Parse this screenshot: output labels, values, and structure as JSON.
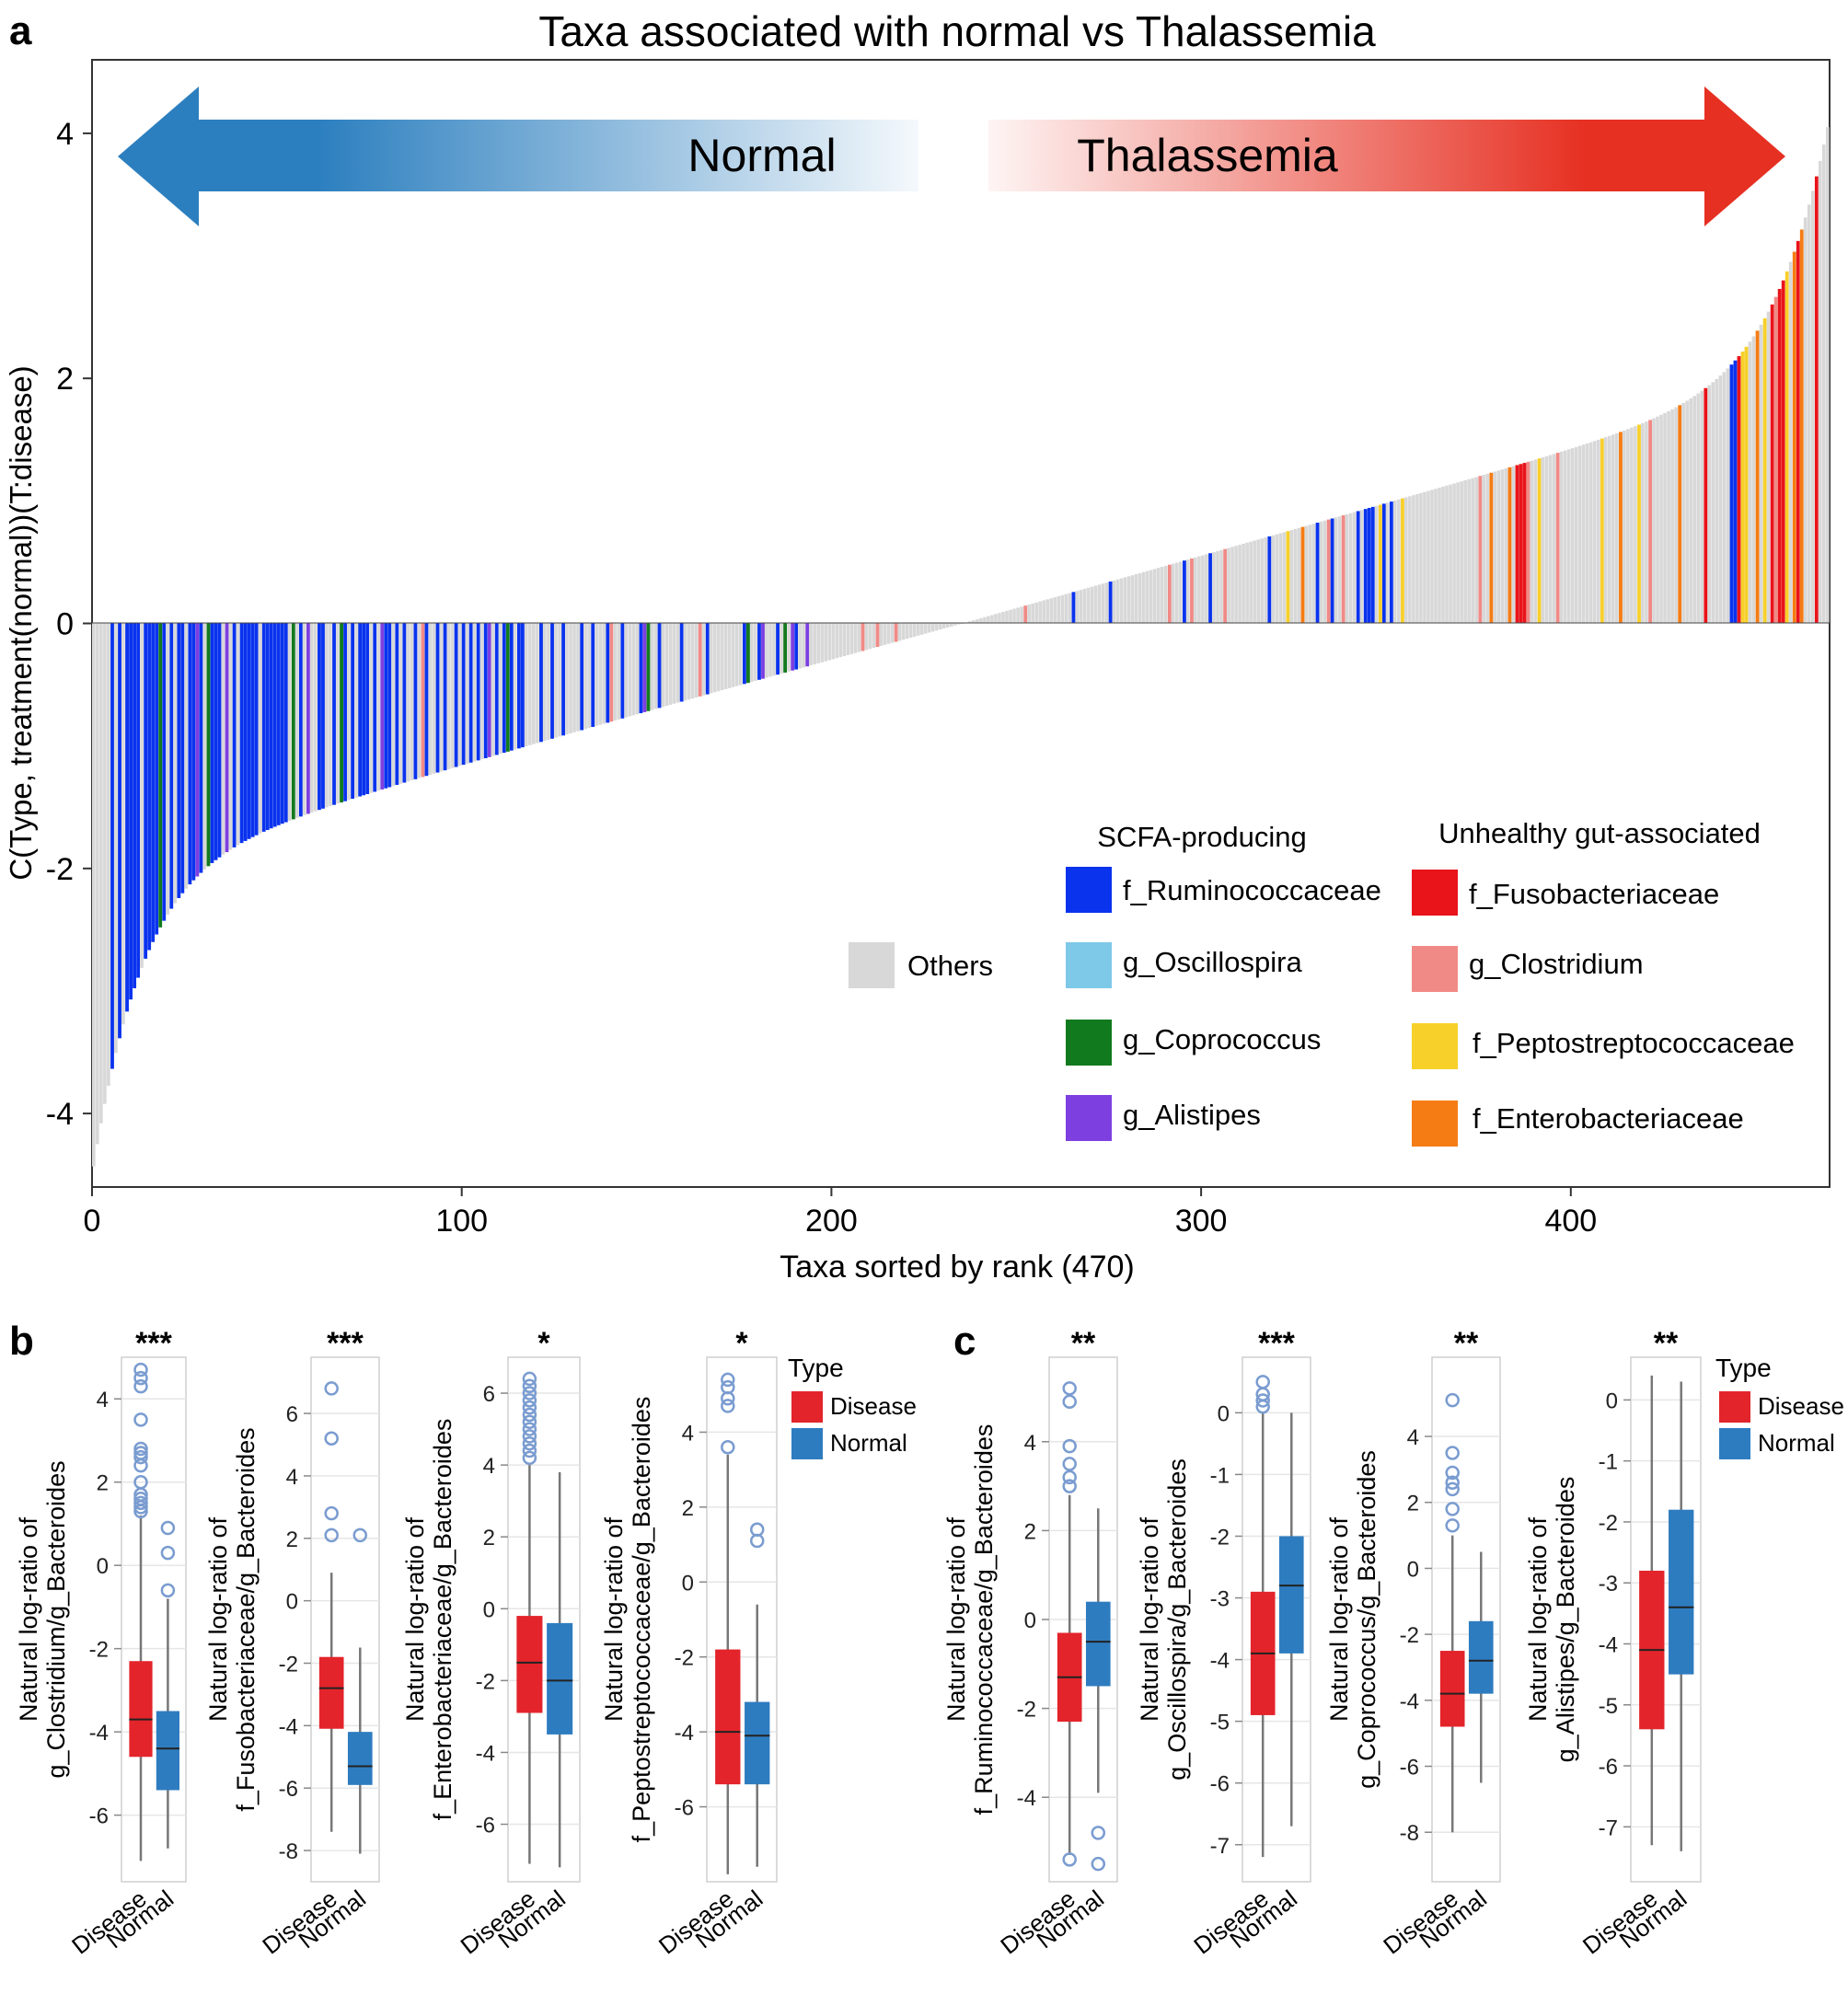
{
  "panel_letters": {
    "a": "a",
    "b": "b",
    "c": "c"
  },
  "colors": {
    "others": "#d8d8d8",
    "f_Ruminococcaceae": "#0a33ee",
    "g_Oscillospira": "#7ec8e8",
    "g_Coprococcus": "#127a1e",
    "g_Alistipes": "#7d3fe0",
    "f_Fusobacteriaceae": "#e8141a",
    "g_Clostridium": "#f08a86",
    "f_Peptostreptococcaceae": "#f7d02a",
    "f_Enterobacteriaceae": "#f57c14",
    "disease": "#e3242b",
    "normal": "#2e7cc0",
    "arrow_blue": "#2c7fbf",
    "arrow_red": "#e63022"
  },
  "chart_data": [
    {
      "type": "bar",
      "panel": "a",
      "title": "Taxa associated with normal vs Thalassemia",
      "xlabel": "Taxa sorted by rank (470)",
      "ylabel": "C(Type, treatment(normal))(T:disease)",
      "xlim": [
        0,
        470
      ],
      "ylim": [
        -4.6,
        4.6
      ],
      "xticks": [
        0,
        100,
        200,
        300,
        400
      ],
      "yticks": [
        -4,
        -2,
        0,
        2,
        4
      ],
      "n_taxa": 470,
      "arrow_labels": {
        "left": "Normal",
        "right": "Thalassemia"
      },
      "value_shape": "sorted ascending, approx. -4.1 at rank 1 to 4.0 at rank 470, ~0 near rank 236",
      "legend": {
        "others": "Others",
        "scfa_title": "SCFA-producing",
        "scfa": [
          "f_Ruminococcaceae",
          "g_Oscillospira",
          "g_Coprococcus",
          "g_Alistipes"
        ],
        "unhealthy_title": "Unhealthy gut-associated",
        "unhealthy": [
          "f_Fusobacteriaceae",
          "g_Clostridium",
          "f_Peptostreptococcaceae",
          "f_Enterobacteriaceae"
        ]
      },
      "highlighted": {
        "f_Ruminococcaceae": [
          6,
          8,
          10,
          11,
          12,
          13,
          15,
          16,
          17,
          18,
          20,
          22,
          24,
          25,
          27,
          28,
          30,
          33,
          34,
          35,
          37,
          39,
          41,
          42,
          43,
          44,
          45,
          47,
          48,
          49,
          50,
          51,
          52,
          53,
          55,
          57,
          59,
          62,
          63,
          66,
          69,
          71,
          73,
          74,
          75,
          77,
          80,
          81,
          83,
          85,
          88,
          91,
          94,
          96,
          99,
          101,
          103,
          105,
          107,
          110,
          112,
          113,
          114,
          116,
          117,
          122,
          125,
          128,
          133,
          136,
          140,
          144,
          149,
          154,
          160,
          167,
          177,
          181,
          186,
          191,
          266,
          276,
          296,
          303,
          319,
          332,
          336,
          343,
          345,
          346,
          347,
          349,
          350,
          352,
          355,
          444,
          445,
          446
        ],
        "g_Oscillospira": [],
        "g_Coprococcus": [
          19,
          32,
          55,
          68,
          113,
          151,
          178,
          188
        ],
        "g_Alistipes": [
          29,
          37,
          59,
          79,
          108,
          150,
          165,
          182,
          190,
          194
        ],
        "f_Fusobacteriaceae": [
          386,
          387,
          388,
          437,
          446,
          455,
          457,
          458,
          462,
          467
        ],
        "g_Clostridium": [
          90,
          141,
          165,
          209,
          213,
          218,
          253,
          292,
          298,
          307,
          335,
          339,
          376,
          389,
          397,
          422,
          456,
          463
        ],
        "f_Peptostreptococcaceae": [
          324,
          349,
          355,
          392,
          409,
          419,
          447,
          448,
          453,
          459
        ],
        "f_Enterobacteriaceae": [
          328,
          379,
          384,
          414,
          430,
          451,
          461,
          463
        ]
      }
    },
    {
      "type": "box",
      "panel": "b",
      "significance": "***",
      "ylabel_line1": "Natural log-ratio of",
      "ylabel_line2": "g_Clostridium/g_Bacteroides",
      "ylim": [
        -7.6,
        5.0
      ],
      "yticks": [
        4,
        2,
        0,
        -2,
        -4,
        -6
      ],
      "categories": [
        "Disease",
        "Normal"
      ],
      "boxes": [
        {
          "name": "Disease",
          "whisker_low": -7.1,
          "q1": -4.6,
          "median": -3.7,
          "q3": -2.3,
          "whisker_high": 1.2,
          "outliers": [
            4.7,
            4.5,
            4.3,
            3.5,
            2.8,
            2.7,
            2.6,
            2.4,
            2.0,
            1.7,
            1.6,
            1.5,
            1.4,
            1.3
          ]
        },
        {
          "name": "Normal",
          "whisker_low": -6.8,
          "q1": -5.4,
          "median": -4.4,
          "q3": -3.5,
          "whisker_high": -0.8,
          "outliers": [
            0.9,
            0.3,
            -0.6
          ]
        }
      ]
    },
    {
      "type": "box",
      "panel": "b",
      "significance": "***",
      "ylabel_line1": "Natural log-ratio of",
      "ylabel_line2": "f_Fusobacteriaceae/g_Bacteroides",
      "ylim": [
        -9.0,
        7.8
      ],
      "yticks": [
        6,
        4,
        2,
        0,
        -2,
        -4,
        -6,
        -8
      ],
      "categories": [
        "Disease",
        "Normal"
      ],
      "boxes": [
        {
          "name": "Disease",
          "whisker_low": -7.4,
          "q1": -4.1,
          "median": -2.8,
          "q3": -1.8,
          "whisker_high": 0.9,
          "outliers": [
            6.8,
            5.2,
            2.8,
            2.1
          ]
        },
        {
          "name": "Normal",
          "whisker_low": -8.1,
          "q1": -5.9,
          "median": -5.3,
          "q3": -4.2,
          "whisker_high": -1.5,
          "outliers": [
            2.1
          ]
        }
      ]
    },
    {
      "type": "box",
      "panel": "b",
      "significance": "*",
      "ylabel_line1": "Natural log-ratio of",
      "ylabel_line2": "f_Enterobacteriaceae/g_Bacteroides",
      "ylim": [
        -7.6,
        7.0
      ],
      "yticks": [
        6,
        4,
        2,
        0,
        -2,
        -4,
        -6
      ],
      "categories": [
        "Disease",
        "Normal"
      ],
      "boxes": [
        {
          "name": "Disease",
          "whisker_low": -7.1,
          "q1": -2.9,
          "median": -1.5,
          "q3": -0.2,
          "whisker_high": 4.0,
          "outliers": [
            6.4,
            6.2,
            6.0,
            5.8,
            5.6,
            5.4,
            5.2,
            5.0,
            4.8,
            4.6,
            4.4,
            4.2
          ]
        },
        {
          "name": "Normal",
          "whisker_low": -7.2,
          "q1": -3.5,
          "median": -2.0,
          "q3": -0.4,
          "whisker_high": 3.8,
          "outliers": []
        }
      ]
    },
    {
      "type": "box",
      "panel": "b",
      "significance": "*",
      "ylabel_line1": "Natural log-ratio of",
      "ylabel_line2": "f_Peptostreptococcaceae/g_Bacteroides",
      "ylim": [
        -8.0,
        6.0
      ],
      "yticks": [
        4,
        2,
        0,
        -2,
        -4,
        -6
      ],
      "categories": [
        "Disease",
        "Normal"
      ],
      "boxes": [
        {
          "name": "Disease",
          "whisker_low": -7.8,
          "q1": -5.4,
          "median": -4.0,
          "q3": -1.8,
          "whisker_high": 3.4,
          "outliers": [
            5.4,
            5.2,
            4.9,
            4.7,
            3.6
          ]
        },
        {
          "name": "Normal",
          "whisker_low": -7.6,
          "q1": -5.4,
          "median": -4.1,
          "q3": -3.2,
          "whisker_high": -0.6,
          "outliers": [
            1.4,
            1.1
          ]
        }
      ]
    },
    {
      "type": "box",
      "panel": "c",
      "significance": "**",
      "ylabel_line1": "Natural log-ratio of",
      "ylabel_line2": "f_Ruminococcaceae/g_Bacteroides",
      "ylim": [
        -5.9,
        5.9
      ],
      "yticks": [
        4,
        2,
        0,
        -2,
        -4
      ],
      "categories": [
        "Disease",
        "Normal"
      ],
      "boxes": [
        {
          "name": "Disease",
          "whisker_low": -5.3,
          "q1": -2.3,
          "median": -1.3,
          "q3": -0.3,
          "whisker_high": 2.8,
          "outliers": [
            5.2,
            4.9,
            3.9,
            3.5,
            3.2,
            3.0,
            -5.4
          ]
        },
        {
          "name": "Normal",
          "whisker_low": -3.9,
          "q1": -1.5,
          "median": -0.5,
          "q3": 0.4,
          "whisker_high": 2.5,
          "outliers": [
            -4.8,
            -5.5
          ]
        }
      ]
    },
    {
      "type": "box",
      "panel": "c",
      "significance": "***",
      "ylabel_line1": "Natural log-ratio of",
      "ylabel_line2": "g_Oscillospira/g_Bacteroides",
      "ylim": [
        -7.6,
        0.9
      ],
      "yticks": [
        0,
        -1,
        -2,
        -3,
        -4,
        -5,
        -6,
        -7
      ],
      "categories": [
        "Disease",
        "Normal"
      ],
      "boxes": [
        {
          "name": "Disease",
          "whisker_low": -7.2,
          "q1": -4.9,
          "median": -3.9,
          "q3": -2.9,
          "whisker_high": 0.0,
          "outliers": [
            0.5,
            0.3,
            0.2,
            0.1
          ]
        },
        {
          "name": "Normal",
          "whisker_low": -6.7,
          "q1": -3.9,
          "median": -2.8,
          "q3": -2.0,
          "whisker_high": 0.0,
          "outliers": []
        }
      ]
    },
    {
      "type": "box",
      "panel": "c",
      "significance": "**",
      "ylabel_line1": "Natural log-ratio of",
      "ylabel_line2": "g_Coprococcus/g_Bacteroides",
      "ylim": [
        -9.5,
        6.4
      ],
      "yticks": [
        4,
        2,
        0,
        -2,
        -4,
        -6,
        -8
      ],
      "categories": [
        "Disease",
        "Normal"
      ],
      "boxes": [
        {
          "name": "Disease",
          "whisker_low": -8.0,
          "q1": -4.8,
          "median": -3.8,
          "q3": -2.5,
          "whisker_high": 1.0,
          "outliers": [
            5.1,
            3.5,
            2.9,
            2.6,
            2.4,
            1.8,
            1.3
          ]
        },
        {
          "name": "Normal",
          "whisker_low": -6.5,
          "q1": -3.8,
          "median": -2.8,
          "q3": -1.6,
          "whisker_high": 0.5,
          "outliers": []
        }
      ]
    },
    {
      "type": "box",
      "panel": "c",
      "significance": "**",
      "ylabel_line1": "Natural log-ratio of",
      "ylabel_line2": "g_Alistipes/g_Bacteroides",
      "ylim": [
        -7.9,
        0.7
      ],
      "yticks": [
        0,
        -1,
        -2,
        -3,
        -4,
        -5,
        -6,
        -7
      ],
      "categories": [
        "Disease",
        "Normal"
      ],
      "boxes": [
        {
          "name": "Disease",
          "whisker_low": -7.3,
          "q1": -5.4,
          "median": -4.1,
          "q3": -2.8,
          "whisker_high": 0.4,
          "outliers": []
        },
        {
          "name": "Normal",
          "whisker_low": -7.4,
          "q1": -4.5,
          "median": -3.4,
          "q3": -1.8,
          "whisker_high": 0.3,
          "outliers": []
        }
      ]
    }
  ],
  "box_legends": [
    {
      "title": "Type",
      "items": [
        "Disease",
        "Normal"
      ]
    },
    {
      "title": "Type",
      "items": [
        "Disease",
        "Normal"
      ]
    }
  ]
}
